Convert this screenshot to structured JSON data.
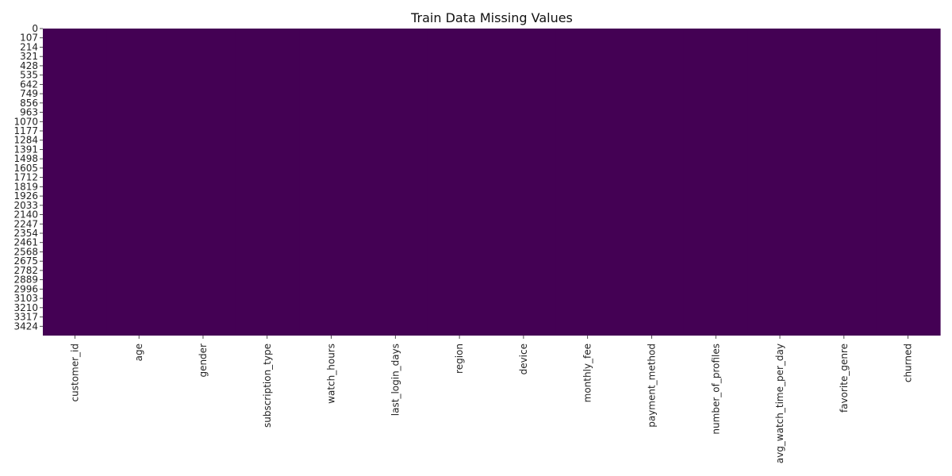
{
  "chart_data": {
    "type": "heatmap",
    "title": "Train Data Missing Values",
    "xlabel": "",
    "ylabel": "",
    "colormap": "viridis",
    "cell_color": "#440154",
    "missing_color": "#fde725",
    "colorbar": false,
    "grid": false,
    "columns": [
      "customer_id",
      "age",
      "gender",
      "subscription_type",
      "watch_hours",
      "last_login_days",
      "region",
      "device",
      "monthly_fee",
      "payment_method",
      "number_of_profiles",
      "avg_watch_time_per_day",
      "favorite_genre",
      "churned"
    ],
    "row_tick_labels": [
      "0",
      "107",
      "214",
      "321",
      "428",
      "535",
      "642",
      "749",
      "856",
      "963",
      "1070",
      "1177",
      "1284",
      "1391",
      "1498",
      "1605",
      "1712",
      "1819",
      "1926",
      "2033",
      "2140",
      "2247",
      "2354",
      "2461",
      "2568",
      "2675",
      "2782",
      "2889",
      "2996",
      "3103",
      "3210",
      "3317",
      "3424"
    ],
    "missing_counts": [
      0,
      0,
      0,
      0,
      0,
      0,
      0,
      0,
      0,
      0,
      0,
      0,
      0,
      0
    ]
  }
}
